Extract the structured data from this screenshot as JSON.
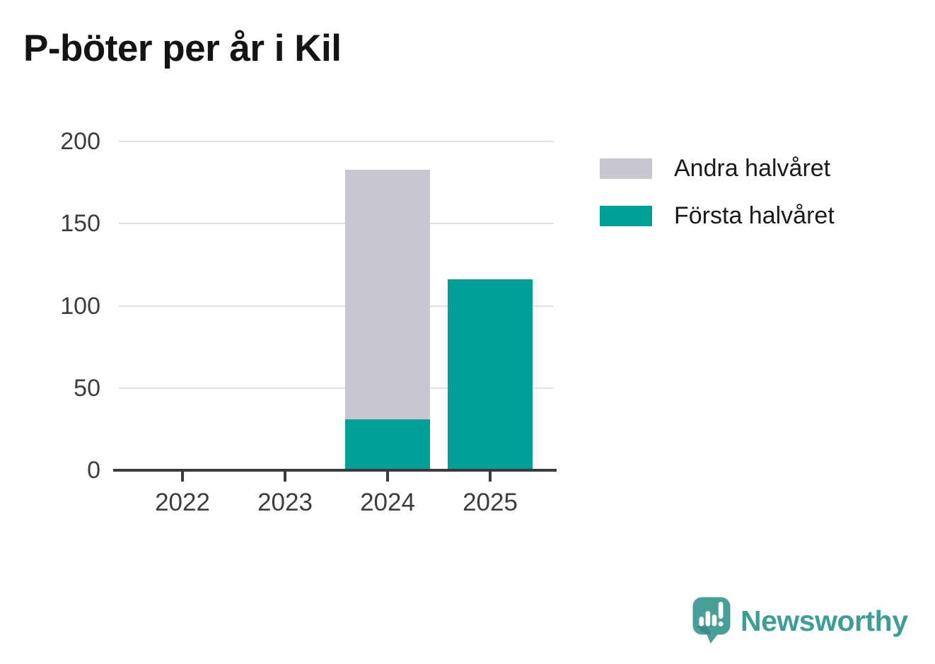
{
  "header": {
    "title": "P-böter per år i Kil"
  },
  "chart_data": {
    "type": "bar",
    "stacked": true,
    "title": "P-böter per år i Kil",
    "categories": [
      "2022",
      "2023",
      "2024",
      "2025"
    ],
    "series": [
      {
        "name": "Första halvåret",
        "color": "#00A099",
        "values": [
          0,
          0,
          31,
          116
        ]
      },
      {
        "name": "Andra halvåret",
        "color": "#C9C7CF",
        "values": [
          0,
          0,
          152,
          0
        ]
      }
    ],
    "totals": [
      0,
      0,
      183,
      116
    ],
    "xlabel": "",
    "ylabel": "",
    "ylim": [
      0,
      200
    ],
    "yticks": [
      0,
      50,
      100,
      150,
      200
    ],
    "grid": true,
    "legend_position": "right",
    "legend": [
      {
        "label": "Andra halvåret",
        "color": "#C9C7CF"
      },
      {
        "label": "Första halvåret",
        "color": "#00A099"
      }
    ]
  },
  "branding": {
    "name": "Newsworthy",
    "logo_color": "#4A9E99",
    "text_color": "#3F9D98"
  },
  "colors": {
    "axis": "#3B3B3B",
    "gridline": "#E2E2E2",
    "tick_label": "#3D3D3D",
    "title": "#141414"
  }
}
